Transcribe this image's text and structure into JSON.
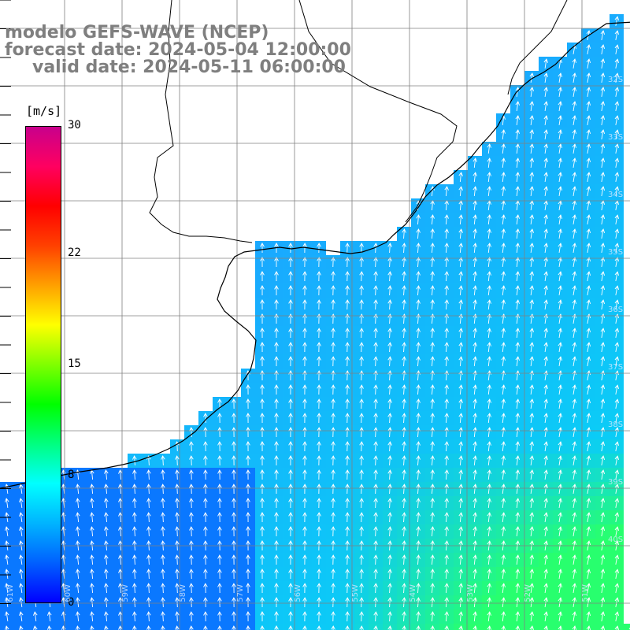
{
  "title": {
    "line1": "modelo GEFS-WAVE (NCEP)",
    "line2": "forecast date: 2024-05-04 12:00:00",
    "line3": "valid date: 2024-05-11 06:00:00"
  },
  "colorbar": {
    "unit": "[m/s]",
    "min": 0,
    "max": 30,
    "ticks": [
      "30",
      "22",
      "15",
      "8",
      "0"
    ],
    "tick_values": [
      30,
      22,
      15,
      8,
      0
    ],
    "colors": [
      "#0000ff",
      "#0060ff",
      "#00b4ff",
      "#00ffff",
      "#00ff80",
      "#00ff00",
      "#80ff00",
      "#ffff00",
      "#ffa000",
      "#ff4000",
      "#ff0000",
      "#ff0060",
      "#c8008c"
    ]
  },
  "map": {
    "land_color": "#ffffff",
    "sea_color_default": "#1aa8ff",
    "grid_color": "#808080",
    "coast_color": "#000000",
    "arrow_color": "#ffffff",
    "lat_labels": [
      "32S",
      "33S",
      "34S",
      "35S",
      "36S",
      "37S",
      "38S",
      "39S",
      "40S"
    ],
    "lon_labels": [
      "61W",
      "60W",
      "59W",
      "58W",
      "57W",
      "56W",
      "55W",
      "54W",
      "53W",
      "52W",
      "51W"
    ]
  }
}
